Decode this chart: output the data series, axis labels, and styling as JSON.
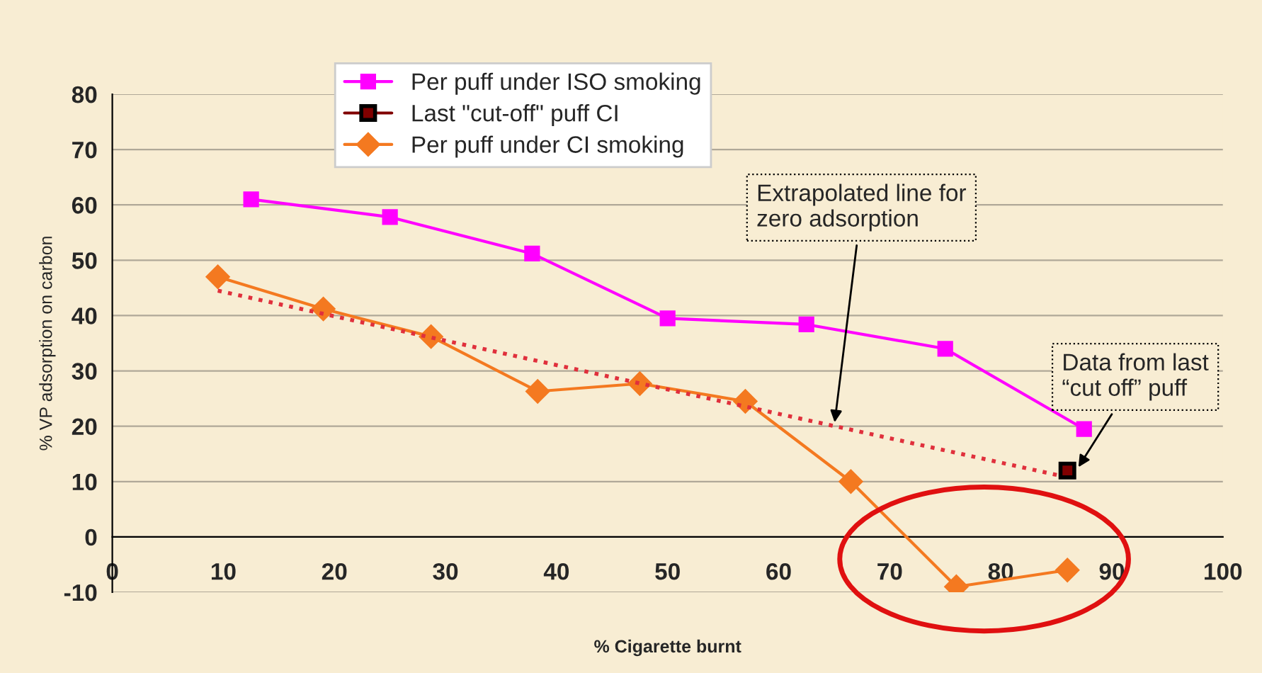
{
  "chart_data": {
    "type": "line",
    "xlabel": "% Cigarette burnt",
    "ylabel": "% VP adsorption on carbon",
    "xlim": [
      0,
      100
    ],
    "xticks": [
      0,
      10,
      20,
      30,
      40,
      50,
      60,
      70,
      80,
      90,
      100
    ],
    "ylim": [
      -10,
      80
    ],
    "yticks": [
      -10,
      0,
      10,
      20,
      30,
      40,
      50,
      60,
      70,
      80
    ],
    "grid": "y",
    "legend": "top",
    "series": [
      {
        "name": "Per puff under ISO smoking",
        "color": "#ff00ff",
        "marker": "square",
        "x": [
          12.5,
          25,
          37.8,
          50,
          62.5,
          75,
          87.5
        ],
        "values": [
          61,
          57.8,
          51.2,
          39.5,
          38.4,
          34,
          19.5
        ]
      },
      {
        "name": "Last \"cut-off\" puff CI",
        "color": "#800000",
        "marker": "square",
        "x": [
          86
        ],
        "values": [
          12
        ]
      },
      {
        "name": "Per puff under CI smoking",
        "color": "#f47920",
        "marker": "diamond",
        "x": [
          9.5,
          19,
          28.7,
          38.3,
          47.5,
          57,
          66.5,
          76,
          86
        ],
        "values": [
          47,
          41.2,
          36.2,
          26.3,
          27.7,
          24.5,
          10,
          -9,
          -6
        ]
      },
      {
        "color": "#e0303c",
        "marker": "none",
        "line_style": "dotted",
        "x": [
          9.5,
          85.5
        ],
        "values": [
          44.5,
          11
        ]
      }
    ],
    "annotations": [
      {
        "text": "Extrapolated line for\nzero adsorption",
        "x": 65,
        "y": 20
      },
      {
        "text": "Data from last\n“cut off” puff",
        "x": 86.5,
        "y": 12
      }
    ]
  }
}
